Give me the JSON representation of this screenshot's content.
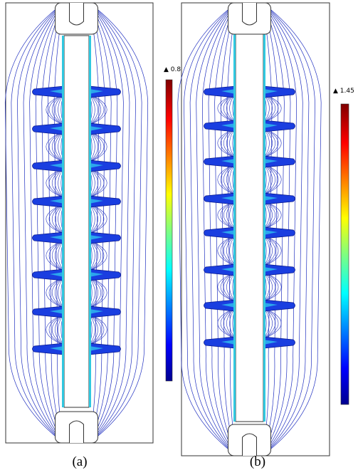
{
  "panels": [
    {
      "colorbar_label": "▲ 0.8",
      "caption": "(a)"
    },
    {
      "colorbar_label": "▲ 1.45",
      "caption": "(b)"
    }
  ]
}
